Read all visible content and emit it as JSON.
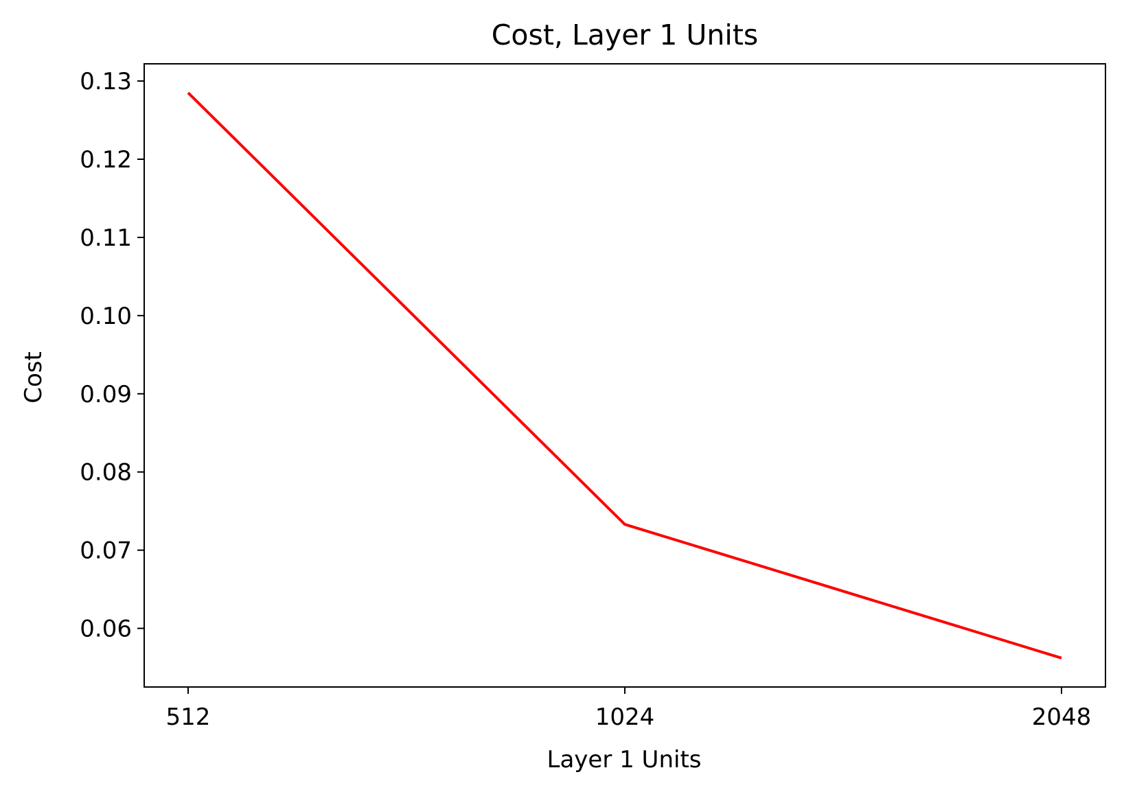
{
  "chart_data": {
    "type": "line",
    "title": "Cost, Layer 1 Units",
    "xlabel": "Layer 1 Units",
    "ylabel": "Cost",
    "categories": [
      "512",
      "1024",
      "2048"
    ],
    "series": [
      {
        "values": [
          0.1285,
          0.0733,
          0.0562
        ],
        "color": "#ff0000"
      }
    ],
    "ylim": [
      0.0525,
      0.1322
    ],
    "yticks": [
      0.06,
      0.07,
      0.08,
      0.09,
      0.1,
      0.11,
      0.12,
      0.13
    ],
    "ytick_labels": [
      "0.06",
      "0.07",
      "0.08",
      "0.09",
      "0.10",
      "0.11",
      "0.12",
      "0.13"
    ],
    "grid": false,
    "legend": false
  }
}
